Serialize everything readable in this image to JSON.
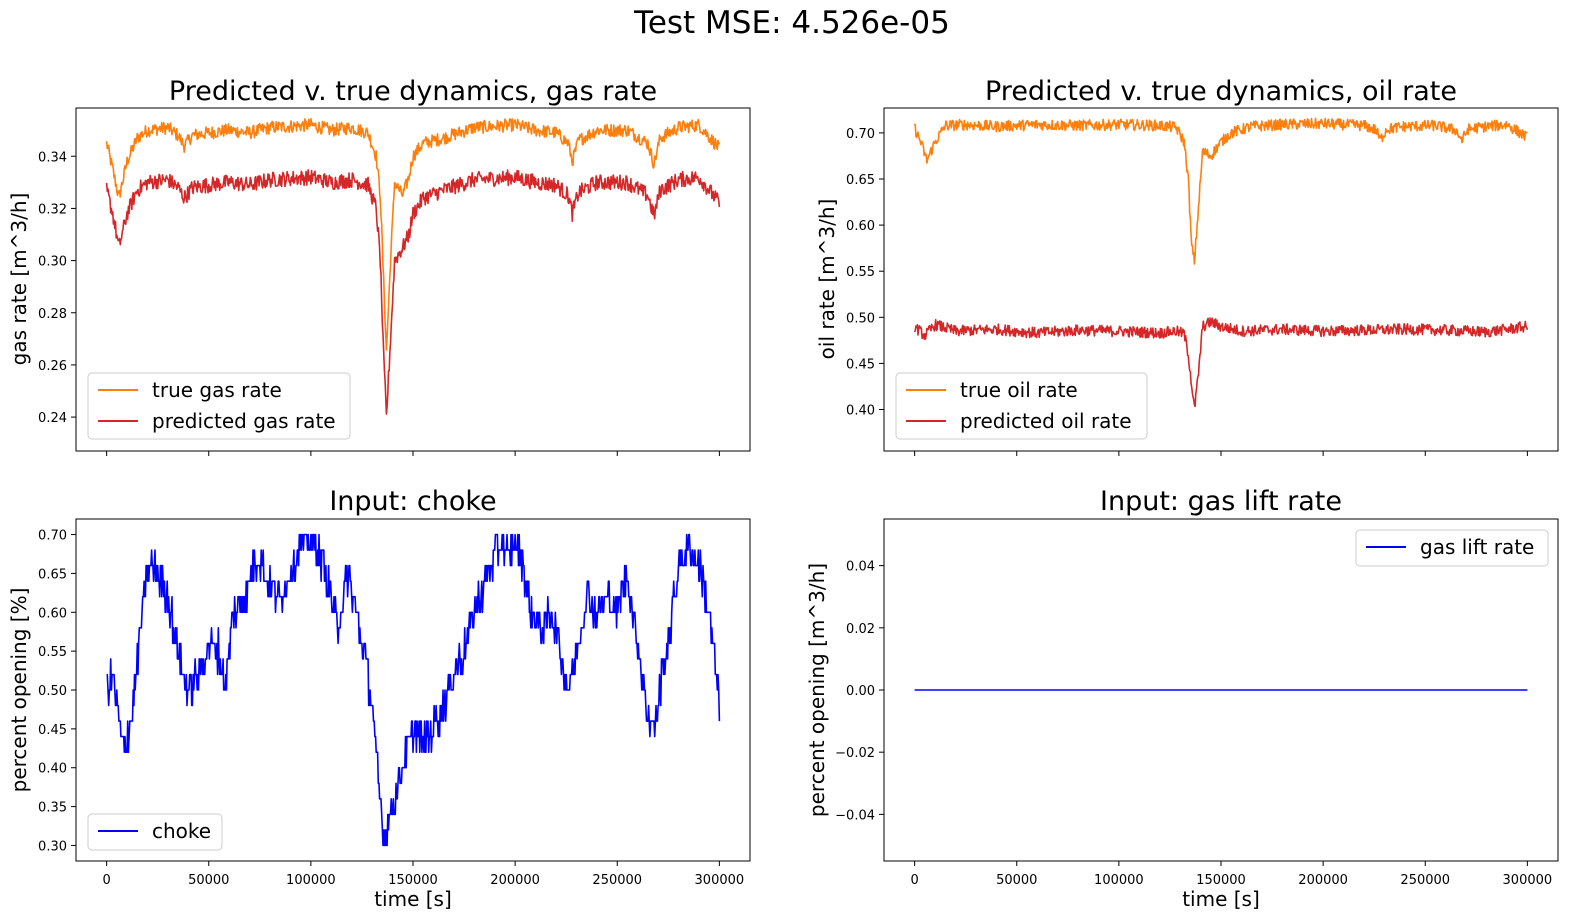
{
  "figure": {
    "suptitle": "Test MSE: 4.526e-05",
    "colors": {
      "true": "#ff7f0e",
      "predicted": "#d62728",
      "input": "#0000ff"
    }
  },
  "chart_data": [
    {
      "id": "gas",
      "type": "line",
      "title": "Predicted v. true dynamics, gas rate",
      "xlabel": "",
      "ylabel": "gas rate [m^3/h]",
      "xlim": [
        -15000,
        315000
      ],
      "ylim": [
        0.227,
        0.3585
      ],
      "xticks": [
        0,
        50000,
        100000,
        150000,
        200000,
        250000,
        300000
      ],
      "xtick_labels_visible": false,
      "yticks": [
        0.24,
        0.26,
        0.28,
        0.3,
        0.32,
        0.34
      ],
      "ytick_labels": [
        "0.24",
        "0.26",
        "0.28",
        "0.30",
        "0.32",
        "0.34"
      ],
      "legend_loc": "lower left",
      "series": [
        {
          "name": "true gas rate",
          "color": "#ff7f0e",
          "noise": 0.0025,
          "x": [
            0,
            3000,
            6000,
            10000,
            15000,
            20000,
            30000,
            35000,
            38000,
            42000,
            50000,
            60000,
            70000,
            80000,
            100000,
            110000,
            120000,
            128000,
            132000,
            134000,
            135500,
            137000,
            139000,
            141000,
            145000,
            148000,
            150000,
            155000,
            165000,
            180000,
            200000,
            210000,
            220000,
            226000,
            228000,
            231000,
            240000,
            255000,
            265000,
            268000,
            271000,
            280000,
            290000,
            300000
          ],
          "y": [
            0.345,
            0.335,
            0.324,
            0.338,
            0.347,
            0.35,
            0.351,
            0.348,
            0.344,
            0.348,
            0.349,
            0.35,
            0.349,
            0.351,
            0.352,
            0.35,
            0.351,
            0.349,
            0.34,
            0.325,
            0.295,
            0.265,
            0.3,
            0.33,
            0.325,
            0.332,
            0.34,
            0.345,
            0.347,
            0.351,
            0.352,
            0.35,
            0.349,
            0.345,
            0.338,
            0.346,
            0.35,
            0.35,
            0.345,
            0.337,
            0.347,
            0.351,
            0.352,
            0.343
          ]
        },
        {
          "name": "predicted gas rate",
          "color": "#d62728",
          "noise": 0.003,
          "x": [
            0,
            3000,
            6000,
            10000,
            15000,
            20000,
            30000,
            35000,
            38000,
            42000,
            50000,
            60000,
            70000,
            80000,
            100000,
            110000,
            120000,
            128000,
            132000,
            134000,
            135500,
            137000,
            139000,
            141000,
            145000,
            148000,
            150000,
            155000,
            165000,
            180000,
            200000,
            210000,
            220000,
            226000,
            228000,
            231000,
            240000,
            255000,
            265000,
            268000,
            271000,
            280000,
            290000,
            300000
          ],
          "y": [
            0.327,
            0.318,
            0.305,
            0.318,
            0.327,
            0.33,
            0.331,
            0.328,
            0.324,
            0.328,
            0.329,
            0.33,
            0.329,
            0.331,
            0.332,
            0.33,
            0.331,
            0.329,
            0.32,
            0.3,
            0.265,
            0.24,
            0.27,
            0.3,
            0.305,
            0.31,
            0.318,
            0.324,
            0.327,
            0.331,
            0.332,
            0.33,
            0.329,
            0.325,
            0.318,
            0.326,
            0.33,
            0.33,
            0.325,
            0.317,
            0.327,
            0.331,
            0.332,
            0.322
          ]
        }
      ]
    },
    {
      "id": "oil",
      "type": "line",
      "title": "Predicted v. true dynamics, oil rate",
      "xlabel": "",
      "ylabel": "oil rate [m^3/h]",
      "xlim": [
        -15000,
        315000
      ],
      "ylim": [
        0.355,
        0.727
      ],
      "xticks": [
        0,
        50000,
        100000,
        150000,
        200000,
        250000,
        300000
      ],
      "xtick_labels_visible": false,
      "yticks": [
        0.4,
        0.45,
        0.5,
        0.55,
        0.6,
        0.65,
        0.7
      ],
      "ytick_labels": [
        "0.40",
        "0.45",
        "0.50",
        "0.55",
        "0.60",
        "0.65",
        "0.70"
      ],
      "legend_loc": "lower left",
      "series": [
        {
          "name": "true oil rate",
          "color": "#ff7f0e",
          "noise": 0.006,
          "x": [
            0,
            3000,
            6000,
            10000,
            15000,
            25000,
            40000,
            60000,
            80000,
            100000,
            120000,
            128000,
            132000,
            134000,
            135500,
            137000,
            139000,
            141000,
            145000,
            150000,
            155000,
            165000,
            180000,
            200000,
            220000,
            226000,
            228000,
            231000,
            240000,
            255000,
            265000,
            268000,
            271000,
            280000,
            290000,
            300000
          ],
          "y": [
            0.705,
            0.69,
            0.67,
            0.69,
            0.708,
            0.709,
            0.707,
            0.709,
            0.708,
            0.709,
            0.708,
            0.706,
            0.69,
            0.65,
            0.58,
            0.56,
            0.62,
            0.68,
            0.675,
            0.69,
            0.7,
            0.707,
            0.709,
            0.71,
            0.708,
            0.703,
            0.692,
            0.704,
            0.707,
            0.708,
            0.703,
            0.692,
            0.704,
            0.707,
            0.709,
            0.695
          ]
        },
        {
          "name": "predicted oil rate",
          "color": "#d62728",
          "noise": 0.006,
          "x": [
            0,
            5000,
            10000,
            20000,
            40000,
            60000,
            80000,
            100000,
            120000,
            128000,
            132000,
            134000,
            135500,
            137000,
            139000,
            141000,
            145000,
            150000,
            160000,
            180000,
            200000,
            220000,
            240000,
            260000,
            280000,
            300000
          ],
          "y": [
            0.49,
            0.48,
            0.492,
            0.485,
            0.487,
            0.483,
            0.486,
            0.485,
            0.483,
            0.485,
            0.482,
            0.46,
            0.43,
            0.4,
            0.44,
            0.49,
            0.495,
            0.49,
            0.485,
            0.487,
            0.485,
            0.486,
            0.487,
            0.486,
            0.484,
            0.49
          ]
        }
      ]
    },
    {
      "id": "choke",
      "type": "line",
      "title": "Input: choke",
      "xlabel": "time [s]",
      "ylabel": "percent opening [%]",
      "xlim": [
        -15000,
        315000
      ],
      "ylim": [
        0.28,
        0.72
      ],
      "xticks": [
        0,
        50000,
        100000,
        150000,
        200000,
        250000,
        300000
      ],
      "xtick_labels": [
        "0",
        "50000",
        "100000",
        "150000",
        "200000",
        "250000",
        "300000"
      ],
      "yticks": [
        0.3,
        0.35,
        0.4,
        0.45,
        0.5,
        0.55,
        0.6,
        0.65,
        0.7
      ],
      "ytick_labels": [
        "0.30",
        "0.35",
        "0.40",
        "0.45",
        "0.50",
        "0.55",
        "0.60",
        "0.65",
        "0.70"
      ],
      "legend_loc": "lower left",
      "series": [
        {
          "name": "choke",
          "color": "#0000ff",
          "noise": 0.022,
          "quantize": 0.02,
          "clip": [
            0.3,
            0.7
          ],
          "x": [
            0,
            3000,
            8000,
            12000,
            16000,
            20000,
            25000,
            30000,
            35000,
            40000,
            45000,
            50000,
            55000,
            58000,
            62000,
            68000,
            72000,
            75000,
            80000,
            85000,
            90000,
            95000,
            100000,
            105000,
            110000,
            113000,
            118000,
            122000,
            126000,
            130000,
            133000,
            136000,
            140000,
            145000,
            150000,
            155000,
            160000,
            165000,
            170000,
            175000,
            180000,
            183000,
            188000,
            193000,
            197000,
            200000,
            204000,
            208000,
            213000,
            218000,
            223000,
            226000,
            230000,
            235000,
            240000,
            245000,
            250000,
            255000,
            260000,
            264000,
            268000,
            272000,
            276000,
            280000,
            285000,
            290000,
            295000,
            300000
          ],
          "y": [
            0.5,
            0.52,
            0.42,
            0.46,
            0.56,
            0.66,
            0.65,
            0.62,
            0.55,
            0.5,
            0.52,
            0.56,
            0.55,
            0.5,
            0.6,
            0.62,
            0.66,
            0.67,
            0.63,
            0.62,
            0.65,
            0.69,
            0.69,
            0.67,
            0.62,
            0.58,
            0.65,
            0.6,
            0.55,
            0.48,
            0.38,
            0.31,
            0.35,
            0.4,
            0.45,
            0.43,
            0.45,
            0.48,
            0.52,
            0.55,
            0.6,
            0.62,
            0.66,
            0.69,
            0.67,
            0.69,
            0.66,
            0.6,
            0.58,
            0.6,
            0.54,
            0.5,
            0.55,
            0.62,
            0.6,
            0.62,
            0.6,
            0.65,
            0.56,
            0.48,
            0.45,
            0.52,
            0.58,
            0.66,
            0.68,
            0.66,
            0.6,
            0.48
          ]
        }
      ]
    },
    {
      "id": "gaslift",
      "type": "line",
      "title": "Input: gas lift rate",
      "xlabel": "time [s]",
      "ylabel": "percent opening [m^3/h]",
      "xlim": [
        -15000,
        315000
      ],
      "ylim": [
        -0.055,
        0.055
      ],
      "xticks": [
        0,
        50000,
        100000,
        150000,
        200000,
        250000,
        300000
      ],
      "xtick_labels": [
        "0",
        "50000",
        "100000",
        "150000",
        "200000",
        "250000",
        "300000"
      ],
      "yticks": [
        -0.04,
        -0.02,
        0.0,
        0.02,
        0.04
      ],
      "ytick_labels": [
        "−0.04",
        "−0.02",
        "0.00",
        "0.02",
        "0.04"
      ],
      "legend_loc": "upper right",
      "series": [
        {
          "name": "gas lift rate",
          "color": "#0000ff",
          "noise": 0,
          "x": [
            0,
            300000
          ],
          "y": [
            0.0,
            0.0
          ]
        }
      ]
    }
  ]
}
